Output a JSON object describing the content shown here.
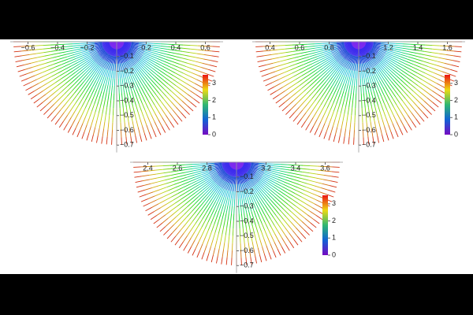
{
  "chart_data": [
    {
      "type": "fan",
      "xlim": [
        -0.72,
        0.72
      ],
      "ylim": [
        -0.75,
        0
      ],
      "xticks": [
        {
          "value": -0.6,
          "label": "−0.6"
        },
        {
          "value": -0.4,
          "label": "−0.4"
        },
        {
          "value": -0.2,
          "label": "−0.2"
        },
        0.2,
        0.4,
        0.6
      ],
      "yticks": [
        {
          "value": -0.1,
          "label": "−0.1"
        },
        {
          "value": -0.2,
          "label": "−0.2"
        },
        {
          "value": -0.3,
          "label": "−0.3"
        },
        {
          "value": -0.4,
          "label": "−0.4"
        },
        {
          "value": -0.5,
          "label": "−0.5"
        },
        {
          "value": -0.6,
          "label": "−0.6"
        },
        {
          "value": -0.7,
          "label": "−0.7"
        }
      ],
      "clim": [
        0,
        3.5
      ],
      "cticks": [
        0,
        1,
        2,
        3
      ]
    },
    {
      "type": "fan",
      "xlim": [
        0.28,
        1.72
      ],
      "ylim": [
        -0.75,
        0
      ],
      "xticks": [
        0.4,
        0.6,
        0.8,
        1.2,
        1.4,
        1.6
      ],
      "yticks": [
        {
          "value": -0.1,
          "label": "−0.1"
        },
        {
          "value": -0.2,
          "label": "−0.2"
        },
        {
          "value": -0.3,
          "label": "−0.3"
        },
        {
          "value": -0.4,
          "label": "−0.4"
        },
        {
          "value": -0.5,
          "label": "−0.5"
        },
        {
          "value": -0.6,
          "label": "−0.6"
        },
        {
          "value": -0.7,
          "label": "−0.7"
        }
      ],
      "clim": [
        0,
        3.5
      ],
      "cticks": [
        0,
        1,
        2,
        3
      ]
    },
    {
      "type": "fan",
      "xlim": [
        2.28,
        3.72
      ],
      "ylim": [
        -0.75,
        0
      ],
      "xticks": [
        2.4,
        2.6,
        2.8,
        3.2,
        3.4,
        3.6
      ],
      "yticks": [
        {
          "value": -0.1,
          "label": "−0.1"
        },
        {
          "value": -0.2,
          "label": "−0.2"
        },
        {
          "value": -0.3,
          "label": "−0.3"
        },
        {
          "value": -0.4,
          "label": "−0.4"
        },
        {
          "value": -0.5,
          "label": "−0.5"
        },
        {
          "value": -0.6,
          "label": "−0.6"
        },
        {
          "value": -0.7,
          "label": "−0.7"
        }
      ],
      "clim": [
        0,
        3.5
      ],
      "cticks": [
        0,
        1,
        2,
        3
      ]
    }
  ]
}
